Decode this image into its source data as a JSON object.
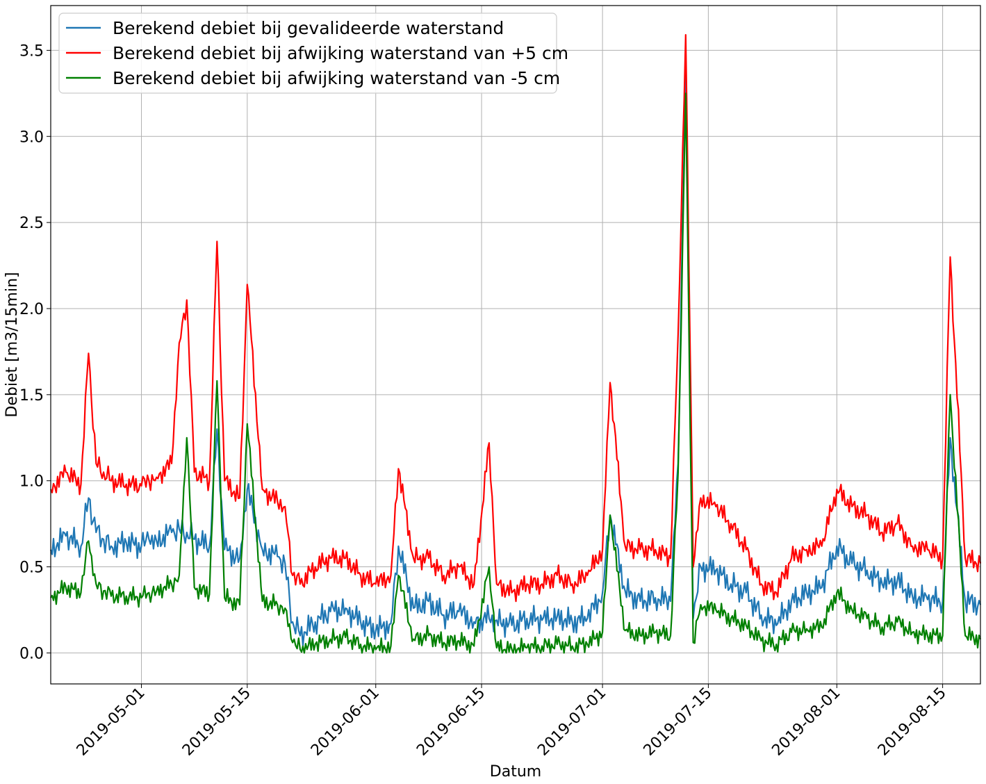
{
  "chart_data": {
    "type": "line",
    "title": "",
    "xlabel": "Datum",
    "ylabel": "Debiet [m3/15min]",
    "x_tick_labels": [
      "2019-05-01",
      "2019-05-15",
      "2019-06-01",
      "2019-06-15",
      "2019-07-01",
      "2019-07-15",
      "2019-08-01",
      "2019-08-15"
    ],
    "y_tick_labels": [
      "0.0",
      "0.5",
      "1.0",
      "1.5",
      "2.0",
      "2.5",
      "3.0",
      "3.5"
    ],
    "y_ticks": [
      0.0,
      0.5,
      1.0,
      1.5,
      2.0,
      2.5,
      3.0,
      3.5
    ],
    "xlim": [
      "2019-04-19",
      "2019-08-20"
    ],
    "ylim": [
      -0.18,
      3.76
    ],
    "grid": true,
    "legend_position": "top-left",
    "series": [
      {
        "name": "Berekend debiet bij gevalideerde waterstand",
        "color": "#1f77b4",
        "x": [
          "2019-04-19",
          "2019-04-21",
          "2019-04-23",
          "2019-04-24",
          "2019-04-25",
          "2019-04-26",
          "2019-04-27",
          "2019-04-29",
          "2019-05-01",
          "2019-05-02",
          "2019-05-03",
          "2019-05-05",
          "2019-05-06",
          "2019-05-07",
          "2019-05-08",
          "2019-05-10",
          "2019-05-11",
          "2019-05-12",
          "2019-05-14",
          "2019-05-15",
          "2019-05-17",
          "2019-05-19",
          "2019-05-20",
          "2019-05-21",
          "2019-05-22",
          "2019-05-24",
          "2019-05-26",
          "2019-05-28",
          "2019-05-30",
          "2019-06-01",
          "2019-06-03",
          "2019-06-04",
          "2019-06-06",
          "2019-06-08",
          "2019-06-10",
          "2019-06-12",
          "2019-06-14",
          "2019-06-16",
          "2019-06-17",
          "2019-06-19",
          "2019-06-21",
          "2019-06-23",
          "2019-06-25",
          "2019-06-27",
          "2019-06-29",
          "2019-07-01",
          "2019-07-02",
          "2019-07-04",
          "2019-07-06",
          "2019-07-08",
          "2019-07-10",
          "2019-07-11",
          "2019-07-12",
          "2019-07-13",
          "2019-07-14",
          "2019-07-16",
          "2019-07-18",
          "2019-07-20",
          "2019-07-22",
          "2019-07-24",
          "2019-07-26",
          "2019-07-28",
          "2019-07-30",
          "2019-08-01",
          "2019-08-03",
          "2019-08-05",
          "2019-08-07",
          "2019-08-09",
          "2019-08-11",
          "2019-08-13",
          "2019-08-15",
          "2019-08-16",
          "2019-08-18",
          "2019-08-20"
        ],
        "values": [
          0.6,
          0.68,
          0.62,
          0.9,
          0.7,
          0.66,
          0.62,
          0.64,
          0.62,
          0.66,
          0.65,
          0.7,
          0.72,
          0.7,
          0.66,
          0.62,
          1.3,
          0.6,
          0.55,
          0.95,
          0.6,
          0.56,
          0.52,
          0.18,
          0.1,
          0.18,
          0.24,
          0.26,
          0.18,
          0.13,
          0.17,
          0.62,
          0.26,
          0.3,
          0.22,
          0.24,
          0.18,
          0.2,
          0.19,
          0.16,
          0.2,
          0.19,
          0.21,
          0.18,
          0.2,
          0.35,
          0.8,
          0.36,
          0.3,
          0.32,
          0.3,
          1.1,
          3.45,
          0.2,
          0.5,
          0.48,
          0.4,
          0.35,
          0.22,
          0.16,
          0.3,
          0.35,
          0.38,
          0.62,
          0.52,
          0.48,
          0.4,
          0.42,
          0.33,
          0.31,
          0.3,
          1.25,
          0.3,
          0.28
        ]
      },
      {
        "name": "Berekend debiet bij afwijking waterstand van +5 cm",
        "color": "#ff0000",
        "x": [
          "2019-04-19",
          "2019-04-21",
          "2019-04-23",
          "2019-04-24",
          "2019-04-25",
          "2019-04-26",
          "2019-04-27",
          "2019-04-29",
          "2019-05-01",
          "2019-05-02",
          "2019-05-03",
          "2019-05-05",
          "2019-05-06",
          "2019-05-07",
          "2019-05-08",
          "2019-05-10",
          "2019-05-11",
          "2019-05-12",
          "2019-05-14",
          "2019-05-15",
          "2019-05-17",
          "2019-05-19",
          "2019-05-20",
          "2019-05-21",
          "2019-05-22",
          "2019-05-24",
          "2019-05-26",
          "2019-05-28",
          "2019-05-30",
          "2019-06-01",
          "2019-06-03",
          "2019-06-04",
          "2019-06-06",
          "2019-06-08",
          "2019-06-10",
          "2019-06-12",
          "2019-06-14",
          "2019-06-16",
          "2019-06-17",
          "2019-06-19",
          "2019-06-21",
          "2019-06-23",
          "2019-06-25",
          "2019-06-27",
          "2019-06-29",
          "2019-07-01",
          "2019-07-02",
          "2019-07-04",
          "2019-07-06",
          "2019-07-08",
          "2019-07-10",
          "2019-07-11",
          "2019-07-12",
          "2019-07-13",
          "2019-07-14",
          "2019-07-16",
          "2019-07-18",
          "2019-07-20",
          "2019-07-22",
          "2019-07-24",
          "2019-07-26",
          "2019-07-28",
          "2019-07-30",
          "2019-08-01",
          "2019-08-03",
          "2019-08-05",
          "2019-08-07",
          "2019-08-09",
          "2019-08-11",
          "2019-08-13",
          "2019-08-15",
          "2019-08-16",
          "2019-08-18",
          "2019-08-20"
        ],
        "values": [
          0.95,
          1.05,
          0.98,
          1.74,
          1.1,
          1.05,
          1.0,
          0.98,
          0.97,
          1.0,
          1.02,
          1.1,
          1.8,
          2.05,
          1.05,
          1.0,
          2.39,
          1.0,
          0.9,
          2.14,
          0.95,
          0.88,
          0.85,
          0.45,
          0.4,
          0.5,
          0.55,
          0.55,
          0.45,
          0.4,
          0.45,
          1.07,
          0.55,
          0.55,
          0.45,
          0.5,
          0.4,
          1.22,
          0.4,
          0.35,
          0.4,
          0.4,
          0.45,
          0.4,
          0.45,
          0.6,
          1.57,
          0.62,
          0.6,
          0.6,
          0.55,
          1.85,
          3.59,
          0.5,
          0.9,
          0.85,
          0.75,
          0.6,
          0.4,
          0.35,
          0.55,
          0.6,
          0.62,
          0.95,
          0.85,
          0.8,
          0.7,
          0.75,
          0.62,
          0.6,
          0.55,
          2.3,
          0.55,
          0.52
        ]
      },
      {
        "name": "Berekend debiet bij afwijking waterstand van -5 cm",
        "color": "#008000",
        "x": [
          "2019-04-19",
          "2019-04-21",
          "2019-04-23",
          "2019-04-24",
          "2019-04-25",
          "2019-04-26",
          "2019-04-27",
          "2019-04-29",
          "2019-05-01",
          "2019-05-02",
          "2019-05-03",
          "2019-05-05",
          "2019-05-06",
          "2019-05-07",
          "2019-05-08",
          "2019-05-10",
          "2019-05-11",
          "2019-05-12",
          "2019-05-14",
          "2019-05-15",
          "2019-05-17",
          "2019-05-19",
          "2019-05-20",
          "2019-05-21",
          "2019-05-22",
          "2019-05-24",
          "2019-05-26",
          "2019-05-28",
          "2019-05-30",
          "2019-06-01",
          "2019-06-03",
          "2019-06-04",
          "2019-06-06",
          "2019-06-08",
          "2019-06-10",
          "2019-06-12",
          "2019-06-14",
          "2019-06-16",
          "2019-06-17",
          "2019-06-19",
          "2019-06-21",
          "2019-06-23",
          "2019-06-25",
          "2019-06-27",
          "2019-06-29",
          "2019-07-01",
          "2019-07-02",
          "2019-07-04",
          "2019-07-06",
          "2019-07-08",
          "2019-07-10",
          "2019-07-11",
          "2019-07-12",
          "2019-07-13",
          "2019-07-14",
          "2019-07-16",
          "2019-07-18",
          "2019-07-20",
          "2019-07-22",
          "2019-07-24",
          "2019-07-26",
          "2019-07-28",
          "2019-07-30",
          "2019-08-01",
          "2019-08-03",
          "2019-08-05",
          "2019-08-07",
          "2019-08-09",
          "2019-08-11",
          "2019-08-13",
          "2019-08-15",
          "2019-08-16",
          "2019-08-18",
          "2019-08-20"
        ],
        "values": [
          0.32,
          0.38,
          0.35,
          0.65,
          0.4,
          0.36,
          0.33,
          0.33,
          0.32,
          0.35,
          0.36,
          0.4,
          0.45,
          1.25,
          0.38,
          0.34,
          1.58,
          0.32,
          0.28,
          1.33,
          0.3,
          0.28,
          0.26,
          0.06,
          0.02,
          0.05,
          0.08,
          0.09,
          0.05,
          0.02,
          0.04,
          0.45,
          0.08,
          0.1,
          0.06,
          0.07,
          0.04,
          0.5,
          0.03,
          0.02,
          0.03,
          0.04,
          0.05,
          0.04,
          0.05,
          0.12,
          0.8,
          0.13,
          0.1,
          0.12,
          0.1,
          1.05,
          3.25,
          0.06,
          0.28,
          0.25,
          0.2,
          0.16,
          0.07,
          0.05,
          0.12,
          0.14,
          0.15,
          0.35,
          0.25,
          0.2,
          0.15,
          0.18,
          0.12,
          0.1,
          0.1,
          1.5,
          0.1,
          0.08
        ]
      }
    ]
  }
}
